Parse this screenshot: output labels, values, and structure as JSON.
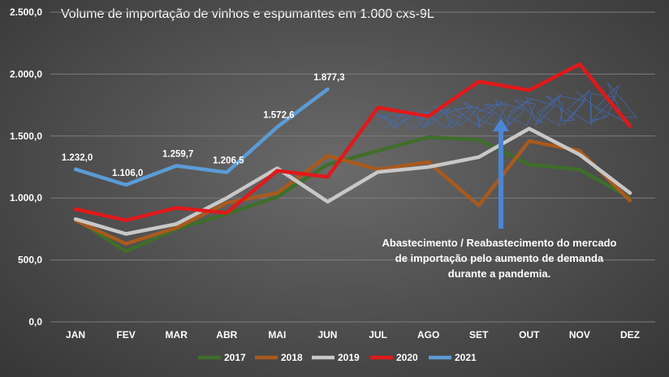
{
  "chart_data": {
    "type": "line",
    "title": "Volume de importação de vinhos e espumantes em 1.000 cxs-9L",
    "xlabel": "",
    "ylabel": "",
    "categories": [
      "JAN",
      "FEV",
      "MAR",
      "ABR",
      "MAI",
      "JUN",
      "JUL",
      "AGO",
      "SET",
      "OUT",
      "NOV",
      "DEZ"
    ],
    "ylim": [
      0,
      2500
    ],
    "yticks": [
      "0,0",
      "500,0",
      "1.000,0",
      "1.500,0",
      "2.000,0",
      "2.500,0"
    ],
    "grid": true,
    "legend_position": "bottom",
    "series": [
      {
        "name": "2017",
        "color": "#3f6e2a",
        "values": [
          830,
          570,
          750,
          870,
          1010,
          1270,
          1380,
          1490,
          1470,
          1270,
          1230,
          1000
        ]
      },
      {
        "name": "2018",
        "color": "#a85a1e",
        "values": [
          820,
          630,
          760,
          960,
          1040,
          1340,
          1230,
          1290,
          940,
          1460,
          1380,
          980
        ]
      },
      {
        "name": "2019",
        "color": "#c8c8c8",
        "values": [
          830,
          710,
          790,
          1000,
          1240,
          970,
          1210,
          1250,
          1330,
          1560,
          1350,
          1040
        ]
      },
      {
        "name": "2020",
        "color": "#e0191a",
        "values": [
          910,
          820,
          920,
          880,
          1220,
          1170,
          1730,
          1660,
          1940,
          1870,
          2080,
          1580
        ]
      },
      {
        "name": "2021",
        "color": "#5b9bd5",
        "values": [
          1232.0,
          1106.0,
          1259.7,
          1206.5,
          1572.6,
          1877.3,
          null,
          null,
          null,
          null,
          null,
          null
        ],
        "labels": [
          "1.232,0",
          "1.106,0",
          "1.259,7",
          "1.206,5",
          "1.572,6",
          "1.877,3"
        ]
      }
    ],
    "annotation": {
      "lines": [
        "Abastecimento / Reabastecimento do mercado",
        "de importação pelo aumento de demanda",
        "durante a pandemia."
      ],
      "arrow_color": "#4a86d6"
    }
  }
}
